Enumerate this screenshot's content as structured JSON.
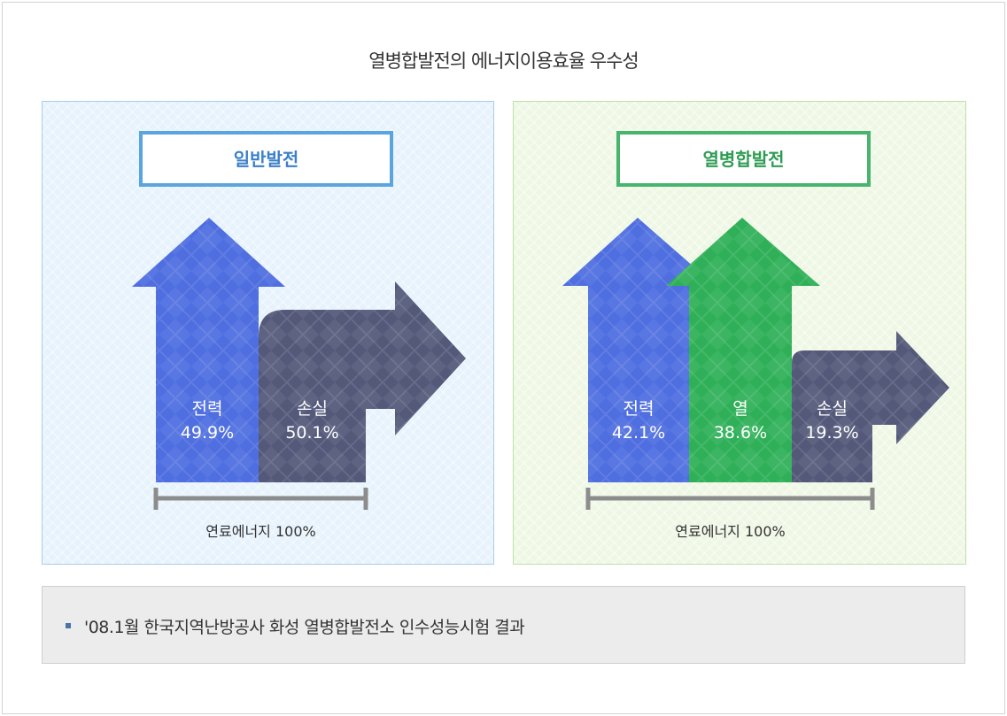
{
  "title": "열병합발전의 에너지이용효율 우수성",
  "panels": {
    "left": {
      "label": "일반발전",
      "bars": [
        {
          "name": "전력",
          "value": "49.9%",
          "color": "#4f6ee0"
        },
        {
          "name": "손실",
          "value": "50.1%",
          "color": "#54597a"
        }
      ],
      "fuel": "연료에너지 100%"
    },
    "right": {
      "label": "열병합발전",
      "bars": [
        {
          "name": "전력",
          "value": "42.1%",
          "color": "#4f6ee0"
        },
        {
          "name": "열",
          "value": "38.6%",
          "color": "#2fb058"
        },
        {
          "name": "손실",
          "value": "19.3%",
          "color": "#54597a"
        }
      ],
      "fuel": "연료에너지 100%"
    }
  },
  "note": "'08.1월 한국지역난방공사 화성 열병합발전소 인수성능시험 결과",
  "colors": {
    "left_border": "#5aa5e0",
    "right_border": "#48b46e",
    "power": "#4f6ee0",
    "heat": "#2fb058",
    "loss": "#54597a"
  }
}
